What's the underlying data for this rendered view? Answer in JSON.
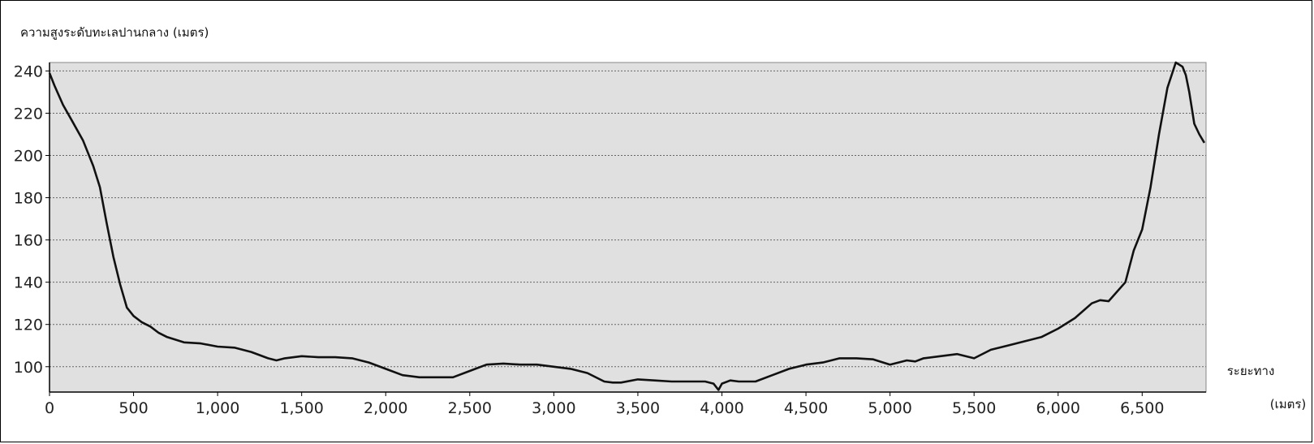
{
  "chart_data": {
    "type": "line",
    "title": "",
    "ylabel": "ความสูงระดับทะเลปานกลาง (เมตร)",
    "xlabel_line1": "ระยะทาง",
    "xlabel_line2": "(เมตร)",
    "xlim": [
      0,
      6880
    ],
    "ylim": [
      88,
      244
    ],
    "grid": true,
    "yticks": [
      {
        "value": 100,
        "label": "100"
      },
      {
        "value": 120,
        "label": "120"
      },
      {
        "value": 140,
        "label": "140"
      },
      {
        "value": 160,
        "label": "160"
      },
      {
        "value": 180,
        "label": "180"
      },
      {
        "value": 200,
        "label": "200"
      },
      {
        "value": 220,
        "label": "220"
      },
      {
        "value": 240,
        "label": "240"
      }
    ],
    "xticks": [
      {
        "value": 0,
        "label": "0"
      },
      {
        "value": 500,
        "label": "500"
      },
      {
        "value": 1000,
        "label": "1,000"
      },
      {
        "value": 1500,
        "label": "1,500"
      },
      {
        "value": 2000,
        "label": "2,000"
      },
      {
        "value": 2500,
        "label": "2,500"
      },
      {
        "value": 3000,
        "label": "3,000"
      },
      {
        "value": 3500,
        "label": "3,500"
      },
      {
        "value": 4000,
        "label": "4,000"
      },
      {
        "value": 4500,
        "label": "4,500"
      },
      {
        "value": 5000,
        "label": "5,000"
      },
      {
        "value": 5500,
        "label": "5,500"
      },
      {
        "value": 6000,
        "label": "6,000"
      },
      {
        "value": 6500,
        "label": "6,500"
      }
    ],
    "series": [
      {
        "x": [
          0,
          30,
          80,
          130,
          200,
          260,
          300,
          340,
          380,
          420,
          460,
          500,
          550,
          600,
          650,
          700,
          800,
          900,
          1000,
          1100,
          1200,
          1300,
          1350,
          1400,
          1500,
          1600,
          1700,
          1800,
          1900,
          2000,
          2100,
          2200,
          2300,
          2400,
          2500,
          2600,
          2700,
          2800,
          2900,
          3000,
          3100,
          3200,
          3300,
          3350,
          3400,
          3500,
          3600,
          3700,
          3800,
          3900,
          3950,
          3980,
          4000,
          4050,
          4100,
          4200,
          4300,
          4400,
          4500,
          4600,
          4700,
          4800,
          4900,
          5000,
          5050,
          5100,
          5150,
          5200,
          5300,
          5400,
          5500,
          5600,
          5700,
          5800,
          5900,
          6000,
          6100,
          6200,
          6250,
          6300,
          6400,
          6450,
          6500,
          6550,
          6600,
          6650,
          6700,
          6740,
          6760,
          6780,
          6810,
          6840,
          6870
        ],
        "y": [
          239,
          233,
          224,
          217,
          207,
          195,
          185,
          168,
          152,
          139,
          128,
          124,
          121,
          119,
          116,
          114,
          111.5,
          111,
          109.5,
          109,
          107,
          104,
          103,
          104,
          105,
          104.5,
          104.5,
          104,
          102,
          99,
          96,
          95,
          95,
          95,
          98,
          101,
          101.5,
          101,
          101,
          100,
          99,
          97,
          93,
          92.5,
          92.5,
          94,
          93.5,
          93,
          93,
          93,
          92,
          89,
          92,
          93.5,
          93,
          93,
          96,
          99,
          101,
          102,
          104,
          104,
          103.5,
          101,
          102,
          103,
          102.5,
          104,
          105,
          106,
          104,
          108,
          110,
          112,
          114,
          118,
          123,
          130,
          131.5,
          131,
          140,
          155,
          165,
          185,
          210,
          232,
          244,
          242,
          238,
          230,
          215,
          210,
          206
        ]
      }
    ]
  }
}
